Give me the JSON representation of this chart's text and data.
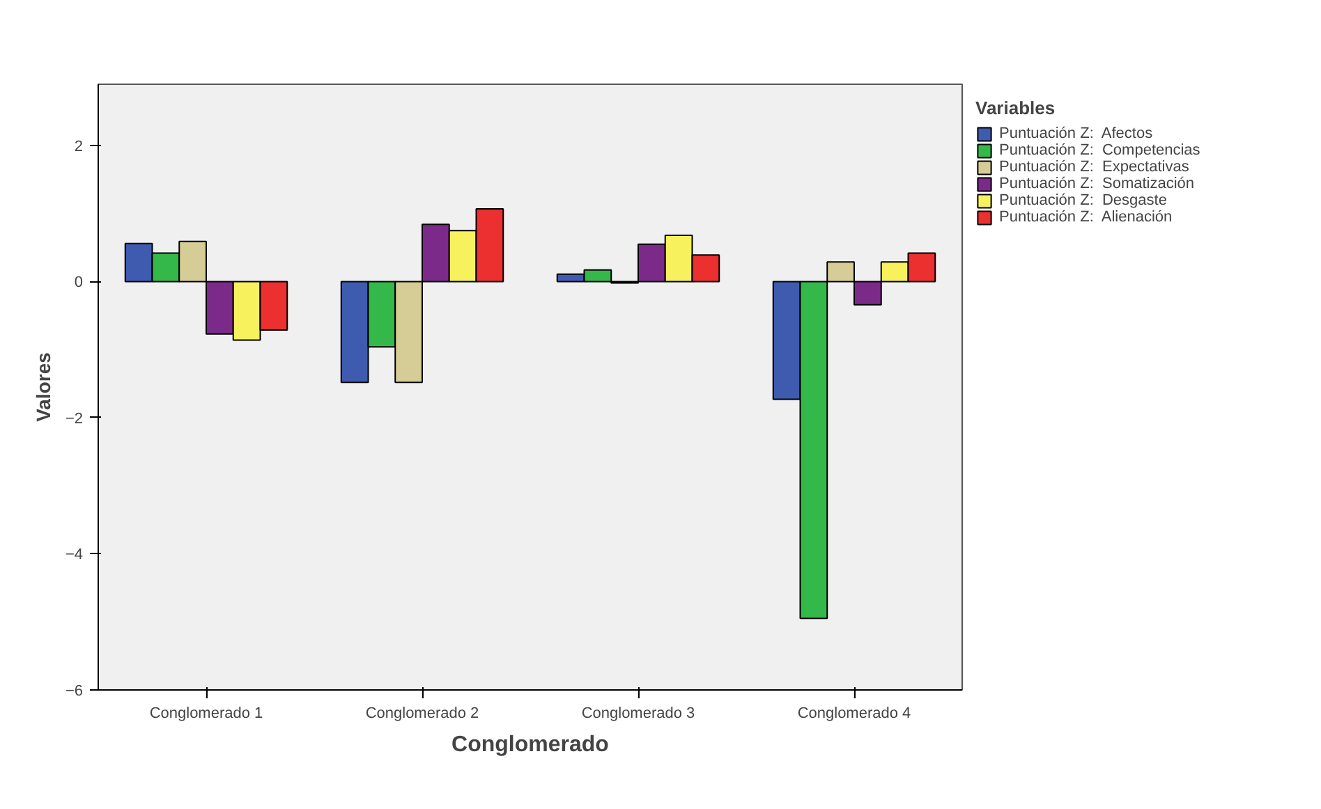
{
  "chart_data": {
    "type": "bar",
    "xlabel": "Conglomerado",
    "ylabel": "Valores",
    "legend_title": "Variables",
    "categories": [
      "Conglomerado 1",
      "Conglomerado 2",
      "Conglomerado 3",
      "Conglomerado 4"
    ],
    "series": [
      {
        "name": "Puntuación Z:  Afectos",
        "color": "#3f5bb0",
        "values": [
          0.56,
          -1.48,
          0.11,
          -1.73
        ]
      },
      {
        "name": "Puntuación Z:  Competencias",
        "color": "#35b84a",
        "values": [
          0.42,
          -0.96,
          0.17,
          -4.95
        ]
      },
      {
        "name": "Puntuación Z:  Expectativas",
        "color": "#d6cc96",
        "values": [
          0.59,
          -1.48,
          -0.02,
          0.29
        ]
      },
      {
        "name": "Puntuación Z:  Somatización",
        "color": "#7b2a8a",
        "values": [
          -0.77,
          0.84,
          0.55,
          -0.34
        ]
      },
      {
        "name": "Puntuación Z:  Desgaste",
        "color": "#f7f15e",
        "values": [
          -0.86,
          0.75,
          0.68,
          0.29
        ]
      },
      {
        "name": "Puntuación Z:  Alienación",
        "color": "#ec2f2f",
        "values": [
          -0.71,
          1.07,
          0.39,
          0.42
        ]
      }
    ],
    "ylim": [
      -6,
      2.9
    ],
    "yticks": [
      -6,
      -4,
      -2,
      0,
      2
    ],
    "grid": false,
    "legend": "top right"
  }
}
